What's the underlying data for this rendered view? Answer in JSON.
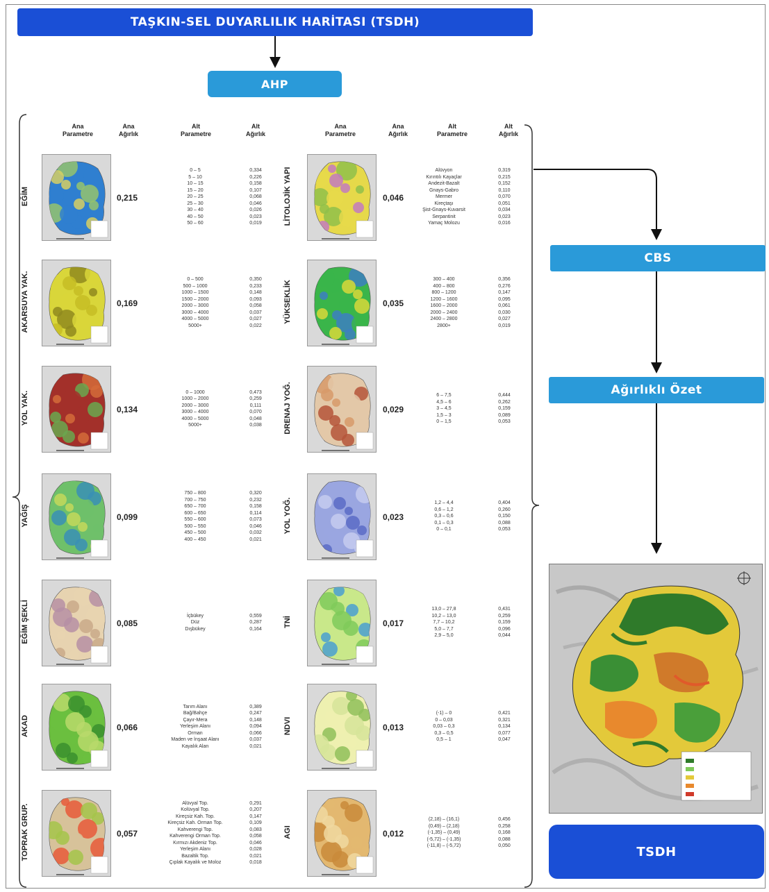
{
  "title": "TAŞKIN-SEL DUYARLILIK HARİTASI (TSDH)",
  "ahp": "AHP",
  "cbs": "CBS",
  "ozet": "Ağırlıklı Özet",
  "tsdh": "TSDH",
  "headers": {
    "ana_param": "Ana\nParametre",
    "ana_agirlik": "Ana\nAğırlık",
    "alt_param": "Alt\nParametre",
    "alt_agirlik": "Alt\nAğırlık"
  },
  "left": [
    {
      "name": "EĞİM",
      "weight": "0,215",
      "subs": [
        "0 – 5",
        "5 – 10",
        "10 – 15",
        "15 – 20",
        "20 – 25",
        "25 – 30",
        "30 – 40",
        "40 – 50",
        "50 – 60"
      ],
      "subw": [
        "0,334",
        "0,226",
        "0,158",
        "0,107",
        "0,068",
        "0,046",
        "0,026",
        "0,023",
        "0,019"
      ],
      "colors": [
        "#2f7fd0",
        "#d7cf63",
        "#95c36d"
      ]
    },
    {
      "name": "AKARSUYA YAK.",
      "weight": "0,169",
      "subs": [
        "0 – 500",
        "500 – 1000",
        "1000 – 1500",
        "1500 – 2000",
        "2000 – 3000",
        "3000 – 4000",
        "4000 – 5000",
        "5000+"
      ],
      "subw": [
        "0,350",
        "0,233",
        "0,148",
        "0,093",
        "0,058",
        "0,037",
        "0,027",
        "0,022"
      ],
      "colors": [
        "#d9d63a",
        "#c6bd24",
        "#8f8a1e"
      ]
    },
    {
      "name": "YOL YAK.",
      "weight": "0,134",
      "subs": [
        "0 – 1000",
        "1000 – 2000",
        "2000 – 3000",
        "3000 – 4000",
        "4000 – 5000",
        "5000+"
      ],
      "subw": [
        "0,473",
        "0,259",
        "0,111",
        "0,070",
        "0,048",
        "0,038"
      ],
      "colors": [
        "#a3302a",
        "#6aa84f",
        "#d36b3a"
      ]
    },
    {
      "name": "YAĞIŞ",
      "weight": "0,099",
      "subs": [
        "750 – 800",
        "700 – 750",
        "650 – 700",
        "600 – 650",
        "550 – 600",
        "500 – 550",
        "450 – 500",
        "400 – 450"
      ],
      "subw": [
        "0,320",
        "0,232",
        "0,158",
        "0,114",
        "0,073",
        "0,046",
        "0,032",
        "0,021"
      ],
      "colors": [
        "#6fc06a",
        "#3a8fb5",
        "#c4d85a"
      ]
    },
    {
      "name": "EĞİM ŞEKLİ",
      "weight": "0,085",
      "subs": [
        "İçbükey",
        "Düz",
        "Dışbükey"
      ],
      "subw": [
        "0,559",
        "0,287",
        "0,164"
      ],
      "colors": [
        "#e7d3b0",
        "#b68fa5",
        "#c9a989"
      ]
    },
    {
      "name": "AKAD",
      "weight": "0,066",
      "subs": [
        "Tarım Alanı",
        "Bağ/Bahçe",
        "Çayır-Mera",
        "Yerleşim Alanı",
        "Orman",
        "Maden ve İnşaat Alanı",
        "Kayalık Alan"
      ],
      "subw": [
        "0,389",
        "0,247",
        "0,148",
        "0,094",
        "0,066",
        "0,037",
        "0,021"
      ],
      "colors": [
        "#6bbf3f",
        "#b8d96b",
        "#3a8f2e"
      ]
    },
    {
      "name": "TOPRAK GRUP.",
      "weight": "0,057",
      "subs": [
        "Alüvyal Top.",
        "Kolüvyal Top.",
        "Kireçsiz Kah. Top.",
        "Kireçsiz Kah. Orman Top.",
        "Kahverengi Top.",
        "Kahverengi Orman Top.",
        "Kırmızı Akdeniz Top.",
        "Yerleşim Alanı",
        "Bazaltik Top.",
        "Çıplak Kayalık ve Moloz"
      ],
      "subw": [
        "0,291",
        "0,207",
        "0,147",
        "0,109",
        "0,083",
        "0,058",
        "0,046",
        "0,028",
        "0,021",
        "0,018"
      ],
      "colors": [
        "#d7c29a",
        "#e85a3a",
        "#a5c44a"
      ]
    }
  ],
  "right": [
    {
      "name": "LİTOLOJİK YAPI",
      "weight": "0,046",
      "subs": [
        "Alüvyon",
        "Kırıntılı Kayaçlar",
        "Andezit-Bazalt",
        "Gnays-Gabro",
        "Mermer",
        "Kireçtaşı",
        "Şist-Gnays-Kuvarsit",
        "Serpantinit",
        "Yamaç Molozu"
      ],
      "subw": [
        "0,319",
        "0,215",
        "0,152",
        "0,110",
        "0,070",
        "0,051",
        "0,034",
        "0,023",
        "0,016"
      ],
      "colors": [
        "#e6d94a",
        "#c27ac0",
        "#8fbf4a"
      ]
    },
    {
      "name": "YÜKSEKLİK",
      "weight": "0,035",
      "subs": [
        "300 – 400",
        "400 – 800",
        "800 – 1200",
        "1200 – 1600",
        "1600 – 2000",
        "2000 – 2400",
        "2400 – 2800",
        "2800+"
      ],
      "subw": [
        "0,356",
        "0,276",
        "0,147",
        "0,095",
        "0,061",
        "0,030",
        "0,027",
        "0,019"
      ],
      "colors": [
        "#3ab54a",
        "#d8d83a",
        "#3d7fc1"
      ]
    },
    {
      "name": "DRENAJ YOĞ.",
      "weight": "0,029",
      "subs": [
        "6 – 7,5",
        "4,5 – 6",
        "3 – 4,5",
        "1,5 – 3",
        "0 – 1,5"
      ],
      "subw": [
        "0,444",
        "0,262",
        "0,159",
        "0,089",
        "0,053"
      ],
      "colors": [
        "#e3c8a8",
        "#b5553a",
        "#d79a6a"
      ]
    },
    {
      "name": "YOL YOĞ.",
      "weight": "0,023",
      "subs": [
        "1,2 – 4,4",
        "0,6 – 1,2",
        "0,3 – 0,6",
        "0,1 – 0,3",
        "0 – 0,1"
      ],
      "subw": [
        "0,404",
        "0,260",
        "0,150",
        "0,088",
        "0,053"
      ],
      "colors": [
        "#9aa6e0",
        "#c5cbef",
        "#5a6bc5"
      ]
    },
    {
      "name": "TNİ",
      "weight": "0,017",
      "subs": [
        "13,0 – 27,8",
        "10,2 – 13,0",
        "7,7 – 10,2",
        "5,0 – 7,7",
        "2,9 – 5,0"
      ],
      "subw": [
        "0,431",
        "0,259",
        "0,159",
        "0,096",
        "0,044"
      ],
      "colors": [
        "#c9e88a",
        "#7fca5a",
        "#4a9fd0"
      ]
    },
    {
      "name": "NDVI",
      "weight": "0,013",
      "subs": [
        "(-1) – 0",
        "0 – 0,03",
        "0,03 – 0,3",
        "0,3 – 0,5",
        "0,5 – 1"
      ],
      "subw": [
        "0,421",
        "0,321",
        "0,134",
        "0,077",
        "0,047"
      ],
      "colors": [
        "#eef0b0",
        "#d6e49a",
        "#8fc05a"
      ]
    },
    {
      "name": "AGI",
      "weight": "0,012",
      "subs": [
        "(2,18) – (16,1)",
        "(0,49) – (2,18)",
        "(-1,35) – (0,49)",
        "(-5,72) – (-1,35)",
        "(-11,8) – (-5,72)"
      ],
      "subw": [
        "0,456",
        "0,258",
        "0,168",
        "0,088",
        "0,050"
      ],
      "colors": [
        "#e3b870",
        "#c98a3a",
        "#f0d8a0"
      ]
    }
  ]
}
